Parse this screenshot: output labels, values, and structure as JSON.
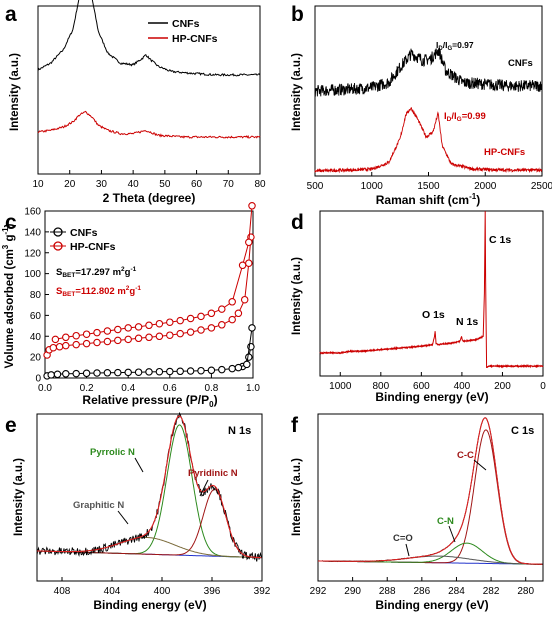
{
  "chart_data": [
    {
      "panel": "a",
      "type": "line",
      "xlabel": "2 Theta (degree)",
      "ylabel": "Intensity (a.u.)",
      "xlim": [
        10,
        80
      ],
      "xticks": [
        10,
        20,
        30,
        40,
        50,
        60,
        70,
        80
      ],
      "legend_position": "top-right",
      "series": [
        {
          "name": "CNFs",
          "color": "#000000",
          "x": [
            10,
            14,
            18,
            21,
            23,
            24.5,
            25.5,
            27,
            29,
            32,
            36,
            40,
            43,
            44,
            45.5,
            48,
            52,
            58,
            66,
            74,
            80
          ],
          "y": [
            0.62,
            0.66,
            0.74,
            0.86,
            1.05,
            1.2,
            1.22,
            1.05,
            0.85,
            0.72,
            0.66,
            0.65,
            0.69,
            0.71,
            0.68,
            0.64,
            0.61,
            0.6,
            0.59,
            0.59,
            0.59
          ]
        },
        {
          "name": "HP-CNFs",
          "color": "#cc0000",
          "x": [
            10,
            14,
            18,
            21,
            23,
            25,
            27,
            29,
            32,
            36,
            40,
            44,
            48,
            56,
            66,
            80
          ],
          "y": [
            0.25,
            0.26,
            0.28,
            0.31,
            0.35,
            0.37,
            0.34,
            0.29,
            0.26,
            0.24,
            0.24,
            0.26,
            0.23,
            0.22,
            0.22,
            0.22
          ]
        }
      ]
    },
    {
      "panel": "b",
      "type": "line",
      "xlabel": "Raman shift (cm⁻¹)",
      "ylabel": "Intensity (a.u.)",
      "xlim": [
        500,
        2500
      ],
      "xticks": [
        500,
        1000,
        1500,
        2000,
        2500
      ],
      "series": [
        {
          "name": "CNFs",
          "color": "#000000",
          "x": [
            500,
            800,
            1000,
            1150,
            1250,
            1350,
            1450,
            1520,
            1590,
            1650,
            1800,
            2000,
            2200,
            2500
          ],
          "y": [
            0.5,
            0.51,
            0.52,
            0.55,
            0.64,
            0.72,
            0.68,
            0.69,
            0.74,
            0.62,
            0.55,
            0.54,
            0.53,
            0.53
          ]
        },
        {
          "name": "HP-CNFs",
          "color": "#cc0000",
          "x": [
            500,
            800,
            1000,
            1150,
            1250,
            1300,
            1345,
            1400,
            1480,
            1540,
            1585,
            1620,
            1700,
            1900,
            2200,
            2500
          ],
          "y": [
            0.03,
            0.035,
            0.04,
            0.08,
            0.22,
            0.36,
            0.4,
            0.34,
            0.23,
            0.26,
            0.37,
            0.18,
            0.07,
            0.04,
            0.035,
            0.035
          ]
        }
      ],
      "annotations": {
        "cnfs_ratio": "I_D/I_G=0.97",
        "hp_ratio": "I_D/I_G=0.99",
        "cnfs_label": "CNFs",
        "hp_label": "HP-CNFs"
      }
    },
    {
      "panel": "c",
      "type": "scatter",
      "xlabel": "Relative pressure (P/P₀)",
      "ylabel": "Volume adsorbed (cm³ g⁻¹)",
      "xlim": [
        0.0,
        1.0
      ],
      "ylim": [
        0,
        160
      ],
      "xticks": [
        0.0,
        0.2,
        0.4,
        0.6,
        0.8,
        1.0
      ],
      "yticks": [
        0,
        20,
        40,
        60,
        80,
        100,
        120,
        140,
        160
      ],
      "legend_position": "top-left",
      "series": [
        {
          "name": "CNFs",
          "color": "#000000",
          "adsorption": {
            "x": [
              0.01,
              0.03,
              0.06,
              0.1,
              0.15,
              0.2,
              0.25,
              0.3,
              0.35,
              0.4,
              0.45,
              0.5,
              0.55,
              0.6,
              0.65,
              0.7,
              0.75,
              0.8,
              0.85,
              0.9,
              0.95,
              0.98,
              0.99
            ],
            "y": [
              2,
              3,
              3.5,
              4,
              4.2,
              4.5,
              4.8,
              5,
              5.2,
              5.4,
              5.6,
              5.8,
              6,
              6.2,
              6.4,
              6.7,
              7,
              7.4,
              8,
              9,
              11,
              20,
              30
            ]
          },
          "desorption": {
            "x": [
              0.995,
              0.97,
              0.93
            ],
            "y": [
              48,
              13,
              10
            ]
          }
        },
        {
          "name": "HP-CNFs",
          "color": "#cc0000",
          "adsorption": {
            "x": [
              0.01,
              0.02,
              0.04,
              0.07,
              0.1,
              0.15,
              0.2,
              0.25,
              0.3,
              0.35,
              0.4,
              0.45,
              0.5,
              0.55,
              0.6,
              0.65,
              0.7,
              0.75,
              0.8,
              0.85,
              0.9,
              0.93,
              0.96,
              0.98,
              0.99
            ],
            "y": [
              22,
              27,
              29,
              30,
              31,
              32,
              33,
              34,
              35,
              36,
              37,
              38,
              39,
              40,
              41,
              42.5,
              44,
              46,
              48,
              51,
              56,
              62,
              75,
              110,
              135
            ]
          },
          "desorption": {
            "x": [
              0.995,
              0.98,
              0.95,
              0.9,
              0.85,
              0.8,
              0.75,
              0.7,
              0.65,
              0.6,
              0.55,
              0.5,
              0.45,
              0.4,
              0.35,
              0.3,
              0.25,
              0.2,
              0.15,
              0.1,
              0.05
            ],
            "y": [
              165,
              130,
              108,
              73,
              66,
              62,
              59,
              57,
              55,
              53.5,
              52,
              50.5,
              49,
              48,
              46.5,
              45,
              43.5,
              42,
              40.5,
              39,
              37
            ]
          }
        }
      ],
      "annotations": {
        "sbet_cnfs": "S_BET=17.297 m²g⁻¹",
        "sbet_hp": "S_BET=112.802 m²g⁻¹"
      }
    },
    {
      "panel": "d",
      "type": "line",
      "xlabel": "Binding energy (eV)",
      "ylabel": "Intensity (a.u.)",
      "xlim": [
        1100,
        0
      ],
      "xticks": [
        1000,
        800,
        600,
        400,
        200,
        0
      ],
      "series": [
        {
          "name": "HP-CNFs",
          "color": "#cc0000",
          "x": [
            1100,
            1000,
            950,
            900,
            800,
            700,
            600,
            545,
            535,
            532,
            528,
            520,
            450,
            410,
            402,
            398,
            390,
            330,
            295,
            289,
            285,
            283,
            278,
            270,
            200,
            100,
            0
          ],
          "y": [
            0.14,
            0.14,
            0.15,
            0.15,
            0.16,
            0.17,
            0.18,
            0.19,
            0.24,
            0.27,
            0.2,
            0.19,
            0.2,
            0.21,
            0.24,
            0.22,
            0.21,
            0.22,
            0.24,
            0.5,
            1.0,
            0.6,
            0.05,
            0.06,
            0.06,
            0.06,
            0.06
          ]
        }
      ],
      "annotations": {
        "o1s": "O 1s",
        "n1s": "N 1s",
        "c1s": "C 1s"
      }
    },
    {
      "panel": "e",
      "type": "line",
      "title": "N 1s",
      "xlabel": "Binding energy (eV)",
      "ylabel": "Intensity (a.u.)",
      "xlim": [
        410,
        392
      ],
      "xticks": [
        408,
        404,
        400,
        396,
        392
      ],
      "series": [
        {
          "name": "Pyrrolic N",
          "color": "#2d8a1e",
          "center": 398.6,
          "height": 0.78,
          "width": 1.0
        },
        {
          "name": "Pyridinic N",
          "color": "#a01515",
          "center": 395.8,
          "height": 0.4,
          "width": 0.9
        },
        {
          "name": "Graphitic N",
          "color": "#7a6a3a",
          "center": 401.2,
          "height": 0.1,
          "width": 2.2
        },
        {
          "name": "Background",
          "color": "#2233cc",
          "x": [
            410,
            392
          ],
          "y": [
            0.04,
            0.0
          ]
        }
      ],
      "annotations": {
        "pyrrolic": "Pyrrolic N",
        "pyridinic": "Pyridinic N",
        "graphitic": "Graphitic N"
      }
    },
    {
      "panel": "f",
      "type": "line",
      "title": "C 1s",
      "xlabel": "Binding energy (eV)",
      "ylabel": "Intensity (a.u.)",
      "xlim": [
        292,
        279
      ],
      "xticks": [
        292,
        290,
        288,
        286,
        284,
        282,
        280
      ],
      "series": [
        {
          "name": "C-C",
          "color": "#a01515",
          "center": 282.3,
          "height": 0.8,
          "width": 0.65
        },
        {
          "name": "C-N",
          "color": "#2d8a1e",
          "center": 283.4,
          "height": 0.12,
          "width": 0.9
        },
        {
          "name": "C=O",
          "color": "#555555",
          "center": 285.0,
          "height": 0.04,
          "width": 1.8
        },
        {
          "name": "Background",
          "color": "#2233cc",
          "x": [
            292,
            279
          ],
          "y": [
            0.02,
            0.0
          ]
        }
      ],
      "annotations": {
        "cc": "C-C",
        "cn": "C-N",
        "co": "C=O"
      }
    }
  ],
  "ui": {
    "panel_labels": [
      "a",
      "b",
      "c",
      "d",
      "e",
      "f"
    ],
    "a": {
      "ylabel": "Intensity (a.u.)",
      "xlabel": "2 Theta (degree)",
      "legend1": "CNFs",
      "legend2": "HP-CNFs",
      "ticks": [
        "10",
        "20",
        "30",
        "40",
        "50",
        "60",
        "70",
        "80"
      ]
    },
    "b": {
      "ylabel": "Intensity (a.u.)",
      "xlabel_main": "Raman shift (cm",
      "xlabel_sup": "-1",
      "xlabel_end": ")",
      "ratio1_a": "I",
      "ratio1_s1": "D",
      "ratio1_b": "/I",
      "ratio1_s2": "G",
      "ratio1_c": "=0.97",
      "ratio2_a": "I",
      "ratio2_s1": "D",
      "ratio2_b": "/I",
      "ratio2_s2": "G",
      "ratio2_c": "=0.99",
      "label_cnfs": "CNFs",
      "label_hp": "HP-CNFs",
      "ticks": [
        "500",
        "1000",
        "1500",
        "2000",
        "2500"
      ]
    },
    "c": {
      "ylabel_main": "Volume adsorbed (cm",
      "ylabel_sup1": "3",
      "ylabel_mid": " g",
      "ylabel_sup2": "-1",
      "ylabel_end": ")",
      "xlabel_main": "Relative pressure (P/P",
      "xlabel_sub": "0",
      "xlabel_end": ")",
      "legend1": "CNFs",
      "legend2": "HP-CNFs",
      "s1_a": "S",
      "s1_sub": "BET",
      "s1_b": "=17.297 m",
      "s1_sup1": "2",
      "s1_c": "g",
      "s1_sup2": "-1",
      "s2_a": "S",
      "s2_sub": "BET",
      "s2_b": "=112.802 m",
      "s2_sup1": "2",
      "s2_c": "g",
      "s2_sup2": "-1",
      "xticks": [
        "0.0",
        "0.2",
        "0.4",
        "0.6",
        "0.8",
        "1.0"
      ],
      "yticks": [
        "0",
        "20",
        "40",
        "60",
        "80",
        "100",
        "120",
        "140",
        "160"
      ]
    },
    "d": {
      "ylabel": "Intensity (a.u.)",
      "xlabel": "Binding energy (eV)",
      "o1s": "O 1s",
      "n1s": "N 1s",
      "c1s": "C 1s",
      "ticks": [
        "1000",
        "800",
        "600",
        "400",
        "200",
        "0"
      ]
    },
    "e": {
      "ylabel": "Intensity (a.u.)",
      "xlabel": "Binding energy (eV)",
      "title": "N 1s",
      "pyrrolic": "Pyrrolic N",
      "pyridinic": "Pyridinic N",
      "graphitic": "Graphitic N",
      "ticks": [
        "408",
        "404",
        "400",
        "396",
        "392"
      ]
    },
    "f": {
      "ylabel": "Intensity (a.u.)",
      "xlabel": "Binding energy (eV)",
      "title": "C 1s",
      "cc": "C-C",
      "cn": "C-N",
      "co": "C=O",
      "ticks": [
        "292",
        "290",
        "288",
        "286",
        "284",
        "282",
        "280"
      ]
    }
  }
}
